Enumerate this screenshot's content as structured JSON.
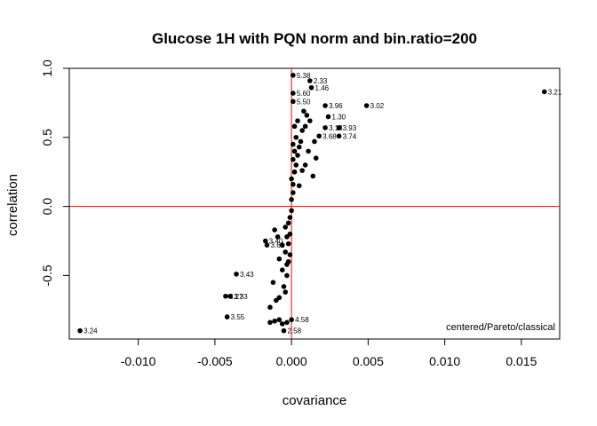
{
  "chart_data": {
    "type": "scatter",
    "title": "Glucose 1H with PQN norm and bin.ratio=200",
    "xlabel": "covariance",
    "ylabel": "correlation",
    "xlim": [
      -0.0145,
      0.0175
    ],
    "ylim": [
      -0.96,
      1.0
    ],
    "x_ticks": [
      -0.01,
      -0.005,
      0.0,
      0.005,
      0.01,
      0.015
    ],
    "x_tick_labels": [
      "-0.010",
      "-0.005",
      "0.000",
      "0.005",
      "0.010",
      "0.015"
    ],
    "y_ticks": [
      -0.5,
      0.0,
      0.5,
      1.0
    ],
    "y_tick_labels": [
      "-0.5",
      "0.0",
      "0.5",
      "1.0"
    ],
    "reference_lines": {
      "x": 0,
      "y": 0,
      "color": "#ff0000"
    },
    "point_color": "#000000",
    "annotation": "centered/Pareto/classical",
    "points": [
      {
        "x": 0.0165,
        "y": 0.83,
        "label": "3.21"
      },
      {
        "x": 0.0049,
        "y": 0.73,
        "label": "3.02"
      },
      {
        "x": 0.0001,
        "y": 0.95,
        "label": "5.38"
      },
      {
        "x": 0.0012,
        "y": 0.91,
        "label": "2.33"
      },
      {
        "x": 0.0013,
        "y": 0.86,
        "label": "1.46"
      },
      {
        "x": 0.0001,
        "y": 0.82,
        "label": "5.60"
      },
      {
        "x": 0.0001,
        "y": 0.76,
        "label": "5.50"
      },
      {
        "x": 0.0022,
        "y": 0.73,
        "label": "3.96"
      },
      {
        "x": 0.0024,
        "y": 0.65,
        "label": "1.30"
      },
      {
        "x": 0.0022,
        "y": 0.57,
        "label": "3.18"
      },
      {
        "x": 0.0031,
        "y": 0.57,
        "label": "3.93"
      },
      {
        "x": 0.0018,
        "y": 0.51,
        "label": "3.68"
      },
      {
        "x": 0.0031,
        "y": 0.51,
        "label": "3.74"
      },
      {
        "x": -0.0017,
        "y": -0.25,
        "label": "3.40"
      },
      {
        "x": -0.0016,
        "y": -0.28,
        "label": "3.62"
      },
      {
        "x": -0.0036,
        "y": -0.49,
        "label": "3.43"
      },
      {
        "x": -0.0043,
        "y": -0.65,
        "label": "3.27"
      },
      {
        "x": -0.004,
        "y": -0.65,
        "label": "3.33"
      },
      {
        "x": -0.0042,
        "y": -0.8,
        "label": "3.55"
      },
      {
        "x": -0.0138,
        "y": -0.9,
        "label": "3.24"
      },
      {
        "x": 0.0,
        "y": -0.82,
        "label": "4.58"
      },
      {
        "x": -0.0005,
        "y": -0.9,
        "label": "2.58"
      },
      {
        "x": -0.0011,
        "y": -0.83,
        "label": ""
      },
      {
        "x": -0.0008,
        "y": -0.82,
        "label": ""
      },
      {
        "x": -0.0014,
        "y": -0.84,
        "label": ""
      },
      {
        "x": -0.0003,
        "y": -0.84,
        "label": ""
      },
      {
        "x": -0.0006,
        "y": -0.85,
        "label": ""
      },
      {
        "x": -0.001,
        "y": -0.68,
        "label": ""
      },
      {
        "x": -0.0008,
        "y": -0.66,
        "label": ""
      },
      {
        "x": -0.0004,
        "y": -0.62,
        "label": ""
      },
      {
        "x": -0.0014,
        "y": -0.73,
        "label": ""
      },
      {
        "x": -0.0012,
        "y": -0.55,
        "label": ""
      },
      {
        "x": -0.0005,
        "y": -0.58,
        "label": ""
      },
      {
        "x": -0.0003,
        "y": -0.5,
        "label": ""
      },
      {
        "x": -0.0006,
        "y": -0.46,
        "label": ""
      },
      {
        "x": -0.0003,
        "y": -0.42,
        "label": ""
      },
      {
        "x": -0.0008,
        "y": -0.38,
        "label": ""
      },
      {
        "x": -0.0004,
        "y": -0.33,
        "label": ""
      },
      {
        "x": -0.0006,
        "y": -0.28,
        "label": ""
      },
      {
        "x": -0.0002,
        "y": -0.27,
        "label": ""
      },
      {
        "x": -0.0009,
        "y": -0.22,
        "label": ""
      },
      {
        "x": -0.0003,
        "y": -0.22,
        "label": ""
      },
      {
        "x": -0.0011,
        "y": -0.17,
        "label": ""
      },
      {
        "x": -0.0004,
        "y": -0.15,
        "label": ""
      },
      {
        "x": -0.0002,
        "y": -0.12,
        "label": ""
      },
      {
        "x": -0.0001,
        "y": -0.2,
        "label": ""
      },
      {
        "x": -0.0001,
        "y": -0.08,
        "label": ""
      },
      {
        "x": 0.0,
        "y": -0.03,
        "label": ""
      },
      {
        "x": -0.0001,
        "y": -0.35,
        "label": ""
      },
      {
        "x": -0.0002,
        "y": -0.4,
        "label": ""
      },
      {
        "x": 0.0,
        "y": 0.05,
        "label": ""
      },
      {
        "x": 0.0001,
        "y": 0.1,
        "label": ""
      },
      {
        "x": 0.0001,
        "y": 0.16,
        "label": ""
      },
      {
        "x": 0.0,
        "y": 0.2,
        "label": ""
      },
      {
        "x": 0.0002,
        "y": 0.25,
        "label": ""
      },
      {
        "x": 0.0003,
        "y": 0.3,
        "label": ""
      },
      {
        "x": 0.0001,
        "y": 0.34,
        "label": ""
      },
      {
        "x": 0.0004,
        "y": 0.37,
        "label": ""
      },
      {
        "x": 0.0002,
        "y": 0.4,
        "label": ""
      },
      {
        "x": 0.0005,
        "y": 0.43,
        "label": ""
      },
      {
        "x": 0.0006,
        "y": 0.47,
        "label": ""
      },
      {
        "x": 0.0003,
        "y": 0.5,
        "label": ""
      },
      {
        "x": 0.0007,
        "y": 0.55,
        "label": ""
      },
      {
        "x": 0.0009,
        "y": 0.58,
        "label": ""
      },
      {
        "x": 0.0004,
        "y": 0.62,
        "label": ""
      },
      {
        "x": 0.001,
        "y": 0.66,
        "label": ""
      },
      {
        "x": 0.0008,
        "y": 0.69,
        "label": ""
      },
      {
        "x": 0.0012,
        "y": 0.62,
        "label": ""
      },
      {
        "x": 0.0015,
        "y": 0.47,
        "label": ""
      },
      {
        "x": 0.0011,
        "y": 0.4,
        "label": ""
      },
      {
        "x": 0.0016,
        "y": 0.35,
        "label": ""
      },
      {
        "x": 0.0009,
        "y": 0.3,
        "label": ""
      },
      {
        "x": 0.0014,
        "y": 0.22,
        "label": ""
      },
      {
        "x": 0.0007,
        "y": 0.26,
        "label": ""
      },
      {
        "x": 0.0005,
        "y": 0.15,
        "label": ""
      },
      {
        "x": 0.0002,
        "y": 0.58,
        "label": ""
      },
      {
        "x": 0.0001,
        "y": 0.45,
        "label": ""
      }
    ]
  }
}
